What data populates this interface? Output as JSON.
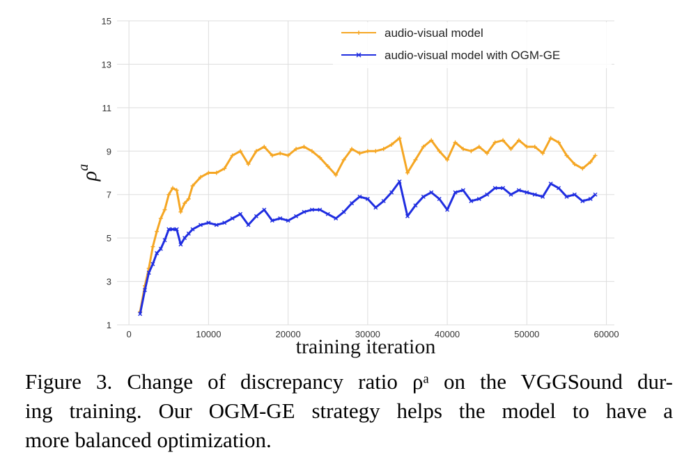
{
  "chart_data": {
    "type": "line",
    "xlabel": "training iteration",
    "ylabel": "ρ",
    "ylabel_superscript": "a",
    "xlim": [
      -1500,
      61000
    ],
    "ylim": [
      1,
      15
    ],
    "xticks": [
      0,
      10000,
      20000,
      30000,
      40000,
      50000,
      60000
    ],
    "xtick_labels": [
      "0",
      "10000",
      "20000",
      "30000",
      "40000",
      "50000",
      "60000"
    ],
    "yticks": [
      1,
      3,
      5,
      7,
      9,
      11,
      13,
      15
    ],
    "ytick_labels": [
      "1",
      "3",
      "5",
      "7",
      "9",
      "11",
      "13",
      "15"
    ],
    "grid": true,
    "legend_position": "top-right",
    "series": [
      {
        "name": "audio-visual model",
        "color": "#f5a623",
        "marker": "plus",
        "x": [
          1400,
          2000,
          2500,
          3000,
          3500,
          4000,
          4500,
          5000,
          5500,
          6000,
          6500,
          7000,
          7500,
          8000,
          9000,
          10000,
          11000,
          12000,
          13000,
          14000,
          15000,
          16000,
          17000,
          18000,
          19000,
          20000,
          21000,
          22000,
          23000,
          24000,
          25000,
          26000,
          27000,
          28000,
          29000,
          30000,
          31000,
          32000,
          33000,
          34000,
          35000,
          36000,
          37000,
          38000,
          39000,
          40000,
          41000,
          42000,
          43000,
          44000,
          45000,
          46000,
          47000,
          48000,
          49000,
          50000,
          51000,
          52000,
          53000,
          54000,
          55000,
          56000,
          57000,
          58000,
          58600
        ],
        "y": [
          1.6,
          2.8,
          3.6,
          4.6,
          5.3,
          5.9,
          6.3,
          7.0,
          7.3,
          7.2,
          6.2,
          6.6,
          6.8,
          7.4,
          7.8,
          8.0,
          8.0,
          8.2,
          8.8,
          9.0,
          8.4,
          9.0,
          9.2,
          8.8,
          8.9,
          8.8,
          9.1,
          9.2,
          9.0,
          8.7,
          8.3,
          7.9,
          8.6,
          9.1,
          8.9,
          9.0,
          9.0,
          9.1,
          9.3,
          9.6,
          8.0,
          8.6,
          9.2,
          9.5,
          9.0,
          8.6,
          9.4,
          9.1,
          9.0,
          9.2,
          8.9,
          9.4,
          9.5,
          9.1,
          9.5,
          9.2,
          9.2,
          8.9,
          9.6,
          9.4,
          8.8,
          8.4,
          8.2,
          8.5,
          8.8
        ]
      },
      {
        "name": "audio-visual model with OGM-GE",
        "color": "#1f2de0",
        "marker": "x",
        "x": [
          1400,
          2000,
          2500,
          3000,
          3500,
          4000,
          4500,
          5000,
          5500,
          6000,
          6500,
          7000,
          7500,
          8000,
          9000,
          10000,
          11000,
          12000,
          13000,
          14000,
          15000,
          16000,
          17000,
          18000,
          19000,
          20000,
          21000,
          22000,
          23000,
          24000,
          25000,
          26000,
          27000,
          28000,
          29000,
          30000,
          31000,
          32000,
          33000,
          34000,
          35000,
          36000,
          37000,
          38000,
          39000,
          40000,
          41000,
          42000,
          43000,
          44000,
          45000,
          46000,
          47000,
          48000,
          49000,
          50000,
          51000,
          52000,
          53000,
          54000,
          55000,
          56000,
          57000,
          58000,
          58600
        ],
        "y": [
          1.5,
          2.6,
          3.4,
          3.8,
          4.3,
          4.5,
          4.9,
          5.4,
          5.4,
          5.4,
          4.7,
          5.0,
          5.2,
          5.4,
          5.6,
          5.7,
          5.6,
          5.7,
          5.9,
          6.1,
          5.6,
          6.0,
          6.3,
          5.8,
          5.9,
          5.8,
          6.0,
          6.2,
          6.3,
          6.3,
          6.1,
          5.9,
          6.2,
          6.6,
          6.9,
          6.8,
          6.4,
          6.7,
          7.1,
          7.6,
          6.0,
          6.5,
          6.9,
          7.1,
          6.8,
          6.3,
          7.1,
          7.2,
          6.7,
          6.8,
          7.0,
          7.3,
          7.3,
          7.0,
          7.2,
          7.1,
          7.0,
          6.9,
          7.5,
          7.3,
          6.9,
          7.0,
          6.7,
          6.8,
          7.0
        ]
      }
    ]
  },
  "caption": {
    "line1": "Figure 3. Change of discrepancy ratio ρᵃ on the VGGSound dur-",
    "line2": "ing training.  Our OGM-GE strategy helps the model to have a",
    "line3": "more balanced optimization."
  }
}
